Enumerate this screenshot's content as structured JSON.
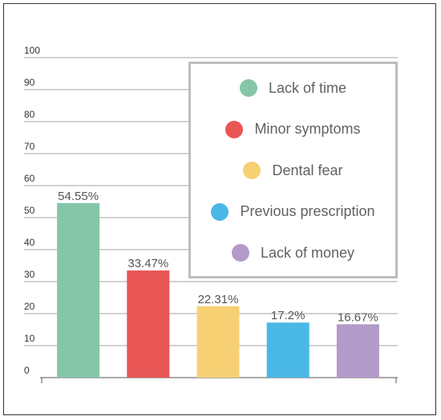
{
  "chart_data": {
    "type": "bar",
    "categories": [
      "Lack of time",
      "Minor symptoms",
      "Dental fear",
      "Previous prescription",
      "Lack of money"
    ],
    "values": [
      54.55,
      33.47,
      22.31,
      17.2,
      16.67
    ],
    "value_labels": [
      "54.55%",
      "33.47%",
      "22.31%",
      "17.2%",
      "16.67%"
    ],
    "colors": [
      "#85c5a8",
      "#e85656",
      "#f7d074",
      "#4ab8e6",
      "#b29ac9"
    ],
    "yticks": [
      "0",
      "10",
      "20",
      "30",
      "40",
      "50",
      "60",
      "70",
      "80",
      "90",
      "100"
    ],
    "ylim": [
      0,
      100
    ],
    "grid": true,
    "legend_placement": "top-right",
    "title": "",
    "xlabel": "",
    "ylabel": ""
  }
}
